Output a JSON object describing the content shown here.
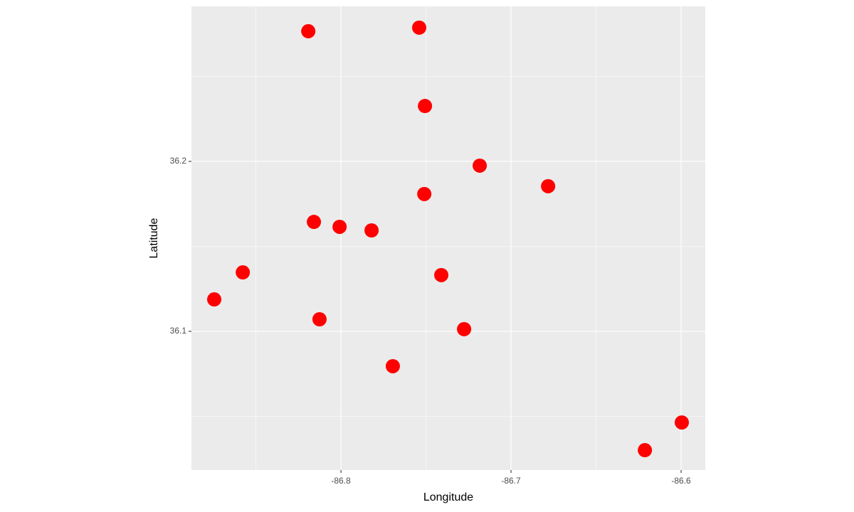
{
  "chart_data": {
    "type": "scatter",
    "xlabel": "Longitude",
    "ylabel": "Latitude",
    "x": [
      -86.8192,
      -86.754,
      -86.7506,
      -86.7184,
      -86.6782,
      -86.751,
      -86.8159,
      -86.8008,
      -86.782,
      -86.8577,
      -86.741,
      -86.8745,
      -86.8126,
      -86.7276,
      -86.7695,
      -86.5996,
      -86.6213
    ],
    "values": [
      36.2766,
      36.2787,
      36.2326,
      36.1975,
      36.1854,
      36.1808,
      36.1644,
      36.1615,
      36.1594,
      36.1347,
      36.1331,
      36.1188,
      36.1071,
      36.1013,
      36.0795,
      36.0464,
      36.0301
    ],
    "color": "#ff0000",
    "xlim": [
      -86.8879,
      -86.5858
    ],
    "ylim": [
      36.0184,
      36.2912
    ],
    "xticks": [
      -86.8,
      -86.7,
      -86.6
    ],
    "yticks": [
      36.1,
      36.2
    ],
    "xminor": [
      -86.85,
      -86.75,
      -86.65
    ],
    "yminor": [
      36.05,
      36.15,
      36.25
    ],
    "grid": true
  }
}
